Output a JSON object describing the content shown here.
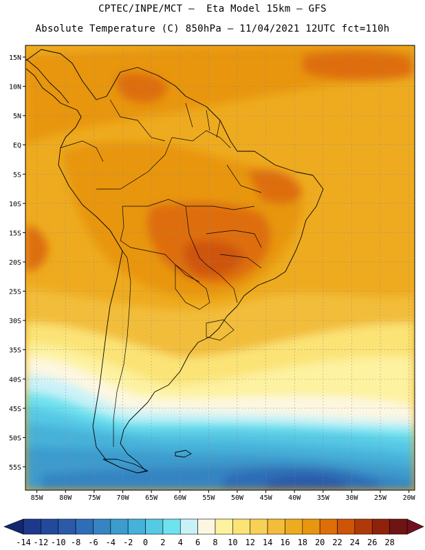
{
  "title_line1": "CPTEC/INPE/MCT –  Eta Model 15km – GFS",
  "title_line2": "Absolute Temperature (C) 850hPa – 11/04/2021 12UTC fct=110h",
  "lat_labels": [
    "15N",
    "10N",
    "5N",
    "EQ",
    "5S",
    "10S",
    "15S",
    "20S",
    "25S",
    "30S",
    "35S",
    "40S",
    "45S",
    "50S",
    "55S"
  ],
  "lon_labels": [
    "85W",
    "80W",
    "75W",
    "70W",
    "65W",
    "60W",
    "55W",
    "50W",
    "45W",
    "40W",
    "35W",
    "30W",
    "25W",
    "20W"
  ],
  "colorbar": {
    "ticks": [
      "-14",
      "-12",
      "-10",
      "-8",
      "-6",
      "-4",
      "-2",
      "0",
      "2",
      "4",
      "6",
      "8",
      "10",
      "12",
      "14",
      "16",
      "18",
      "20",
      "22",
      "24",
      "26",
      "28"
    ],
    "colors": [
      "#1d3a8a",
      "#23499c",
      "#2a5aa8",
      "#2f6db6",
      "#3684c2",
      "#3d9bce",
      "#47b2d9",
      "#56c9e5",
      "#6fe2ef",
      "#c9f2f8",
      "#fdf7e1",
      "#fdf2a0",
      "#fbe376",
      "#f7d055",
      "#f2bd3a",
      "#eeab1f",
      "#e8960f",
      "#de6e08",
      "#ce5408",
      "#b03a07",
      "#8f220b",
      "#6e1513"
    ],
    "under_color": "#12286e",
    "over_color": "#701020"
  },
  "field_colors": {
    "sea": "#eeab1f",
    "band18": "#e8960f",
    "band20": "#de6e08",
    "band22": "#ce5408",
    "band14": "#f2bd3a",
    "band12": "#f7d055",
    "band10": "#fbe376",
    "band8": "#fdf2a0",
    "band6": "#fdf7e1",
    "band4": "#c9f2f8",
    "band2": "#6fe2ef",
    "band0": "#56c9e5",
    "bandm2": "#47b2d9",
    "bandm4": "#3d9bce",
    "bandm6": "#3684c2",
    "bandm8": "#2f6db6",
    "bandm10": "#2a5aa8",
    "bandm12": "#23499c"
  }
}
